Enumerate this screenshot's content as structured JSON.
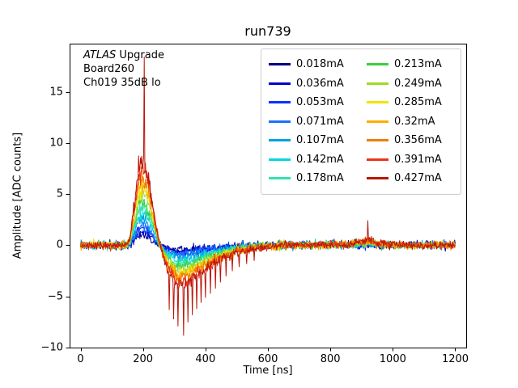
{
  "figure": {
    "background": "#ffffff"
  },
  "chart_data": {
    "type": "line",
    "title": "run739",
    "xlabel": "Time [ns]",
    "ylabel": "Amplitude [ADC counts]",
    "xlim": [
      -35,
      1235
    ],
    "ylim": [
      -10,
      19.7
    ],
    "xticks": [
      0,
      200,
      400,
      600,
      800,
      1000,
      1200
    ],
    "yticks": [
      -10,
      -5,
      0,
      5,
      10,
      15
    ],
    "grid": false,
    "legend_position": "upper right",
    "annotation": {
      "italic": "ATLAS",
      "line1_rest": " Upgrade",
      "line2": "Board260",
      "line3": "Ch019 35dB lo"
    },
    "series": [
      {
        "name": "0.018mA",
        "current": 0.018,
        "color": "#000080",
        "peak": 1.0
      },
      {
        "name": "0.036mA",
        "current": 0.036,
        "color": "#0000cd",
        "peak": 1.3
      },
      {
        "name": "0.053mA",
        "current": 0.053,
        "color": "#0032ff",
        "peak": 1.59
      },
      {
        "name": "0.071mA",
        "current": 0.071,
        "color": "#1d6eff",
        "peak": 1.89
      },
      {
        "name": "0.107mA",
        "current": 0.107,
        "color": "#00a0e4",
        "peak": 2.5
      },
      {
        "name": "0.142mA",
        "current": 0.142,
        "color": "#00d8e0",
        "peak": 3.09
      },
      {
        "name": "0.178mA",
        "current": 0.178,
        "color": "#2fe3ae",
        "peak": 3.7
      },
      {
        "name": "0.213mA",
        "current": 0.213,
        "color": "#3ccf3c",
        "peak": 4.29
      },
      {
        "name": "0.249mA",
        "current": 0.249,
        "color": "#9edb26",
        "peak": 4.9
      },
      {
        "name": "0.285mA",
        "current": 0.285,
        "color": "#efe600",
        "peak": 5.5
      },
      {
        "name": "0.32mA",
        "current": 0.32,
        "color": "#ffad00",
        "peak": 6.09
      },
      {
        "name": "0.356mA",
        "current": 0.356,
        "color": "#ef7e00",
        "peak": 6.7
      },
      {
        "name": "0.391mA",
        "current": 0.391,
        "color": "#ea3517",
        "peak": 7.29
      },
      {
        "name": "0.427mA",
        "current": 0.427,
        "color": "#bb150a",
        "peak": 7.9
      }
    ],
    "waveform_shape": {
      "t": [
        0,
        145,
        158,
        172,
        186,
        196,
        206,
        216,
        232,
        248,
        262,
        285,
        312,
        340,
        380,
        430,
        500,
        580,
        660,
        860,
        900,
        928,
        960,
        1010,
        1200
      ],
      "v": [
        0,
        0,
        0.08,
        0.5,
        0.92,
        1.0,
        0.97,
        0.85,
        0.5,
        0.12,
        -0.12,
        -0.35,
        -0.5,
        -0.47,
        -0.36,
        -0.22,
        -0.09,
        -0.02,
        0,
        0.01,
        0.05,
        0.06,
        0.02,
        0,
        0
      ]
    },
    "noise_sigma": 0.17,
    "spikes_series": "0.427mA",
    "spikes": [
      {
        "t": 196,
        "v": 8.7
      },
      {
        "t": 204,
        "v": 18.4
      },
      {
        "t": 284,
        "v": -6.3
      },
      {
        "t": 298,
        "v": -7.2
      },
      {
        "t": 312,
        "v": -7.9
      },
      {
        "t": 330,
        "v": -8.8
      },
      {
        "t": 344,
        "v": -7.5
      },
      {
        "t": 358,
        "v": -6.8
      },
      {
        "t": 372,
        "v": -6.2
      },
      {
        "t": 386,
        "v": -5.6
      },
      {
        "t": 400,
        "v": -5.1
      },
      {
        "t": 416,
        "v": -4.7
      },
      {
        "t": 432,
        "v": -4.2
      },
      {
        "t": 448,
        "v": -3.6
      },
      {
        "t": 466,
        "v": -3.0
      },
      {
        "t": 486,
        "v": -2.5
      },
      {
        "t": 508,
        "v": -2.1
      },
      {
        "t": 532,
        "v": -1.8
      },
      {
        "t": 556,
        "v": -1.5
      },
      {
        "t": 920,
        "v": 2.4
      }
    ]
  }
}
